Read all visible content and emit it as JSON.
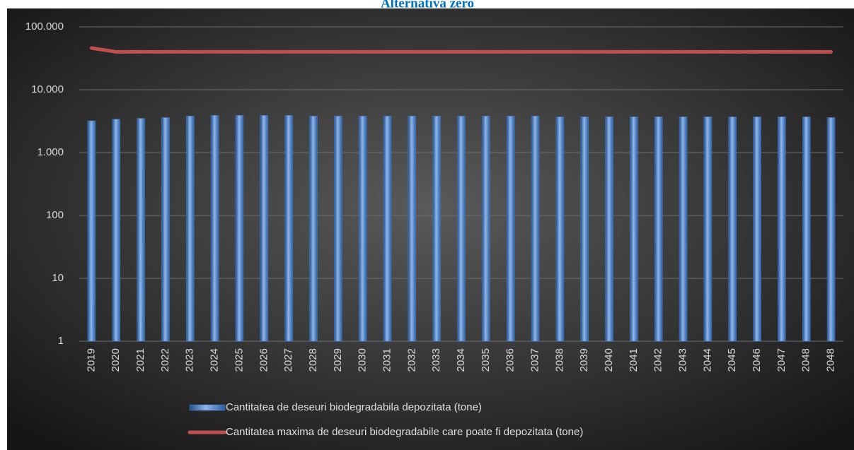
{
  "chart_data": {
    "type": "bar_line",
    "title": "Alternativa zero",
    "categories": [
      "2019",
      "2020",
      "2021",
      "2022",
      "2023",
      "2024",
      "2025",
      "2026",
      "2027",
      "2028",
      "2029",
      "2030",
      "2031",
      "2032",
      "2033",
      "2034",
      "2035",
      "2036",
      "2037",
      "2038",
      "2039",
      "2040",
      "2041",
      "2042",
      "2043",
      "2044",
      "2045",
      "2046",
      "2047",
      "2048",
      "2048"
    ],
    "series": [
      {
        "name": "Cantitatea de deseuri biodegradabila depozitata (tone)",
        "type": "bar",
        "color": "#4a80c8",
        "values": [
          3200,
          3400,
          3500,
          3600,
          3800,
          3900,
          3900,
          3900,
          3900,
          3800,
          3800,
          3800,
          3800,
          3800,
          3800,
          3800,
          3800,
          3800,
          3800,
          3700,
          3700,
          3700,
          3700,
          3700,
          3700,
          3700,
          3700,
          3700,
          3700,
          3700,
          3600
        ]
      },
      {
        "name": "Cantitatea maxima de deseuri biodegradabile care poate fi depozitata (tone)",
        "type": "line",
        "color": "#c0504d",
        "values": [
          46000,
          40000,
          40000,
          40000,
          40000,
          40000,
          40000,
          40000,
          40000,
          40000,
          40000,
          40000,
          40000,
          40000,
          40000,
          40000,
          40000,
          40000,
          40000,
          40000,
          40000,
          40000,
          40000,
          40000,
          40000,
          40000,
          40000,
          40000,
          40000,
          40000,
          40000
        ]
      }
    ],
    "log_scale": true,
    "ylim": [
      1,
      100000
    ],
    "yticks": [
      1,
      10,
      100,
      {
        "value": 1000,
        "label": "1.000"
      },
      {
        "value": 10000,
        "label": "10.000"
      },
      {
        "value": 100000,
        "label": "100.000"
      }
    ],
    "grid": true,
    "legend_position": "bottom"
  }
}
